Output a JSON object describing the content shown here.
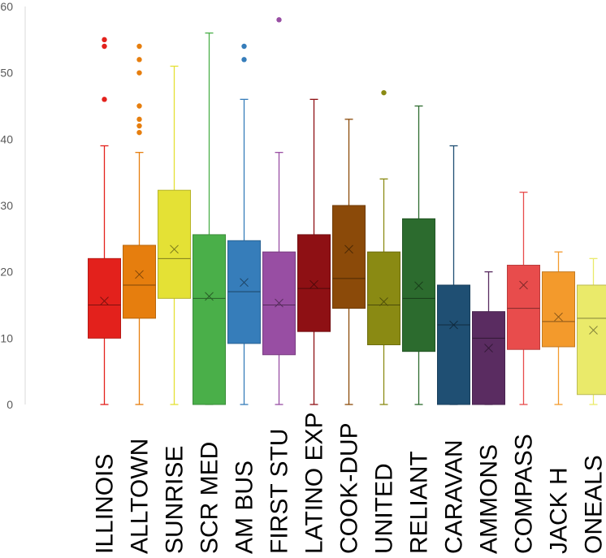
{
  "chart_data": {
    "type": "box",
    "title": "",
    "xlabel": "",
    "ylabel": "",
    "ylim": [
      0,
      60
    ],
    "yticks": [
      "0",
      "10",
      "20",
      "30",
      "40",
      "50",
      "60"
    ],
    "grid": false,
    "legend": "none",
    "categories": [
      "ILLINOIS",
      "ALLTOWN",
      "SUNRISE",
      "SCR MED",
      "AM BUS",
      "FIRST STU",
      "LATINO EXP",
      "COOK-DUP",
      "UNITED",
      "RELIANT",
      "CARAVAN",
      "AMMONS",
      "COMPASS",
      "JACK H",
      "ONEALS"
    ],
    "boxes": [
      {
        "min": 0,
        "q1": 10,
        "median": 15,
        "q3": 22,
        "max": 39,
        "mean": 15.6,
        "outliers": [
          46,
          54,
          55
        ],
        "color": "#e3211c"
      },
      {
        "min": 0,
        "q1": 13,
        "median": 18,
        "q3": 24,
        "max": 38,
        "mean": 19.6,
        "outliers": [
          41,
          42,
          43,
          45,
          50,
          52,
          54
        ],
        "color": "#e67e0e"
      },
      {
        "min": 0,
        "q1": 16,
        "median": 22,
        "q3": 32.3,
        "max": 51,
        "mean": 23.4,
        "outliers": [],
        "color": "#e4e135"
      },
      {
        "min": 0,
        "q1": 0,
        "median": 16,
        "q3": 25.6,
        "max": 56,
        "mean": 16.3,
        "outliers": [],
        "color": "#4aaf49"
      },
      {
        "min": 0,
        "q1": 9.2,
        "median": 17,
        "q3": 24.7,
        "max": 46,
        "mean": 18.4,
        "outliers": [
          52,
          54
        ],
        "color": "#367dba"
      },
      {
        "min": 0,
        "q1": 7.5,
        "median": 15,
        "q3": 23,
        "max": 38,
        "mean": 15.3,
        "outliers": [
          58
        ],
        "color": "#984ea3"
      },
      {
        "min": 0,
        "q1": 11,
        "median": 17.5,
        "q3": 25.6,
        "max": 46,
        "mean": 18.1,
        "outliers": [],
        "color": "#8e1014"
      },
      {
        "min": 0,
        "q1": 14.5,
        "median": 19,
        "q3": 30,
        "max": 43,
        "mean": 23.4,
        "outliers": [],
        "color": "#8b4a09"
      },
      {
        "min": 0,
        "q1": 9,
        "median": 15,
        "q3": 23,
        "max": 34,
        "mean": 15.5,
        "outliers": [
          47
        ],
        "color": "#8a8a13"
      },
      {
        "min": 0,
        "q1": 8,
        "median": 16,
        "q3": 28,
        "max": 45,
        "mean": 17.9,
        "outliers": [],
        "color": "#2c6b2e"
      },
      {
        "min": 0,
        "q1": 0,
        "median": 12,
        "q3": 18,
        "max": 39,
        "mean": 12,
        "outliers": [],
        "color": "#1f4f73"
      },
      {
        "min": 0,
        "q1": 0,
        "median": 10,
        "q3": 14,
        "max": 20,
        "mean": 8.5,
        "outliers": [],
        "color": "#5a2c61"
      },
      {
        "min": 0,
        "q1": 8.3,
        "median": 14.5,
        "q3": 21,
        "max": 32,
        "mean": 18,
        "outliers": [],
        "color": "#e84c4c"
      },
      {
        "min": 0,
        "q1": 8.7,
        "median": 12.5,
        "q3": 20,
        "max": 23,
        "mean": 13.2,
        "outliers": [],
        "color": "#f39a2c"
      },
      {
        "min": 0,
        "q1": 1.5,
        "median": 13,
        "q3": 18,
        "max": 22,
        "mean": 11.2,
        "outliers": [],
        "color": "#eaea6a"
      }
    ]
  }
}
